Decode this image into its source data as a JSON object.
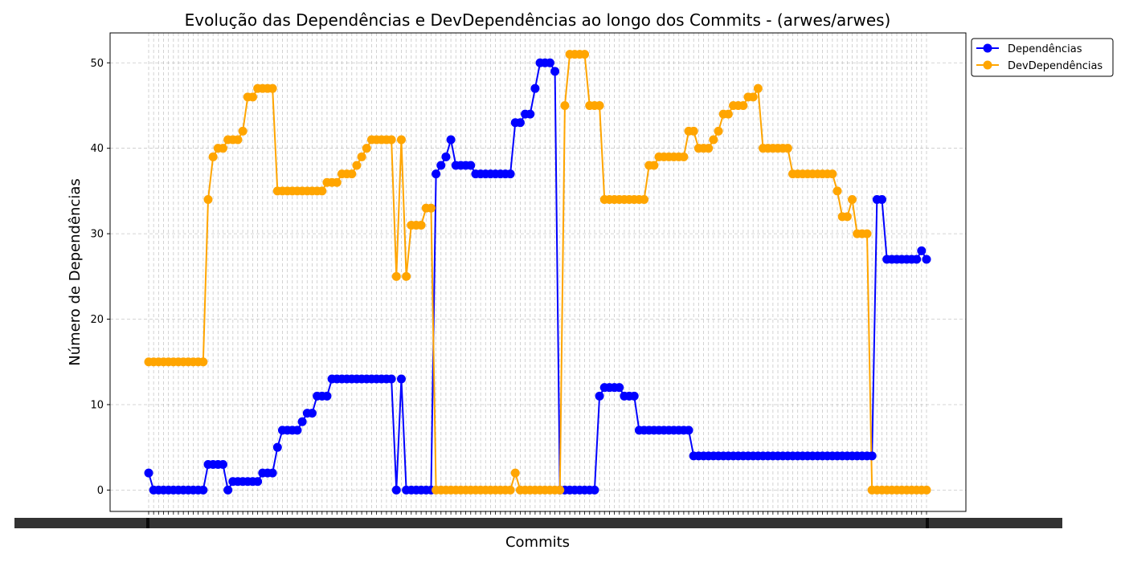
{
  "chart_data": {
    "type": "line",
    "title": "Evolução das Dependências e DevDependências ao longo dos Commits - (arwes/arwes)",
    "xlabel": "Commits",
    "ylabel": "Número de Dependências",
    "ylim": [
      -2.5,
      53.5
    ],
    "yticks": [
      0,
      10,
      20,
      30,
      40,
      50
    ],
    "grid": true,
    "legend_position": "top-right, outside plot",
    "x_tick_labels_note": "overlapping commit hash labels (illegible)",
    "series": [
      {
        "name": "Dependências",
        "color": "#0000ff",
        "values": [
          2,
          0,
          0,
          0,
          0,
          0,
          0,
          0,
          0,
          0,
          0,
          0,
          3,
          3,
          3,
          3,
          0,
          1,
          1,
          1,
          1,
          1,
          1,
          2,
          2,
          2,
          5,
          7,
          7,
          7,
          7,
          8,
          9,
          9,
          11,
          11,
          11,
          13,
          13,
          13,
          13,
          13,
          13,
          13,
          13,
          13,
          13,
          13,
          13,
          13,
          0,
          13,
          0,
          0,
          0,
          0,
          0,
          0,
          37,
          38,
          39,
          41,
          38,
          38,
          38,
          38,
          37,
          37,
          37,
          37,
          37,
          37,
          37,
          37,
          43,
          43,
          44,
          44,
          47,
          50,
          50,
          50,
          49,
          0,
          0,
          0,
          0,
          0,
          0,
          0,
          0,
          11,
          12,
          12,
          12,
          12,
          11,
          11,
          11,
          7,
          7,
          7,
          7,
          7,
          7,
          7,
          7,
          7,
          7,
          7,
          4,
          4,
          4,
          4,
          4,
          4,
          4,
          4,
          4,
          4,
          4,
          4,
          4,
          4,
          4,
          4,
          4,
          4,
          4,
          4,
          4,
          4,
          4,
          4,
          4,
          4,
          4,
          4,
          4,
          4,
          4,
          4,
          4,
          4,
          4,
          4,
          4,
          34,
          34,
          27,
          27,
          27,
          27,
          27,
          27,
          27,
          28,
          27
        ]
      },
      {
        "name": "DevDependências",
        "color": "#ffa500",
        "values": [
          15,
          15,
          15,
          15,
          15,
          15,
          15,
          15,
          15,
          15,
          15,
          15,
          34,
          39,
          40,
          40,
          41,
          41,
          41,
          42,
          46,
          46,
          47,
          47,
          47,
          47,
          35,
          35,
          35,
          35,
          35,
          35,
          35,
          35,
          35,
          35,
          36,
          36,
          36,
          37,
          37,
          37,
          38,
          39,
          40,
          41,
          41,
          41,
          41,
          41,
          25,
          41,
          25,
          31,
          31,
          31,
          33,
          33,
          0,
          0,
          0,
          0,
          0,
          0,
          0,
          0,
          0,
          0,
          0,
          0,
          0,
          0,
          0,
          0,
          2,
          0,
          0,
          0,
          0,
          0,
          0,
          0,
          0,
          0,
          45,
          51,
          51,
          51,
          51,
          45,
          45,
          45,
          34,
          34,
          34,
          34,
          34,
          34,
          34,
          34,
          34,
          38,
          38,
          39,
          39,
          39,
          39,
          39,
          39,
          42,
          42,
          40,
          40,
          40,
          41,
          42,
          44,
          44,
          45,
          45,
          45,
          46,
          46,
          47,
          40,
          40,
          40,
          40,
          40,
          40,
          37,
          37,
          37,
          37,
          37,
          37,
          37,
          37,
          37,
          35,
          32,
          32,
          34,
          30,
          30,
          30,
          0,
          0,
          0,
          0,
          0,
          0,
          0,
          0,
          0,
          0,
          0,
          0
        ]
      }
    ]
  }
}
